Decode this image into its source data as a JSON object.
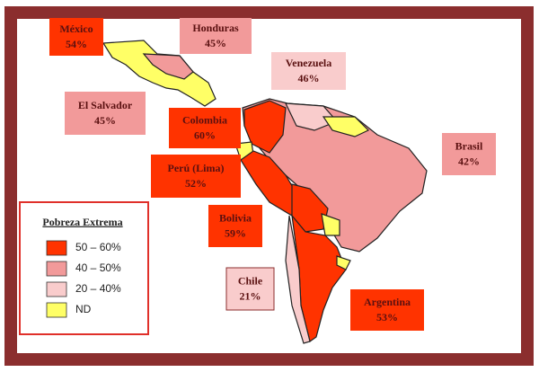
{
  "labels": [
    {
      "name": "México",
      "value": "54%"
    },
    {
      "name": "Honduras",
      "value": "45%"
    },
    {
      "name": "Venezuela",
      "value": "46%"
    },
    {
      "name": "El Salvador",
      "value": "45%"
    },
    {
      "name": "Colombia",
      "value": "60%"
    },
    {
      "name": "Brasil",
      "value": "42%"
    },
    {
      "name": "Perú (Lima)",
      "value": "52%"
    },
    {
      "name": "Bolivia",
      "value": "59%"
    },
    {
      "name": "Chile",
      "value": "21%"
    },
    {
      "name": "Argentina",
      "value": "53%"
    }
  ],
  "legend": {
    "title": "Pobreza Extrema",
    "items": [
      {
        "label": "50 – 60%",
        "color": "#ff3300"
      },
      {
        "label": "40 – 50%",
        "color": "#f29a9a"
      },
      {
        "label": "20 – 40%",
        "color": "#f9cccc"
      },
      {
        "label": "ND",
        "color": "#ffff66"
      }
    ]
  }
}
